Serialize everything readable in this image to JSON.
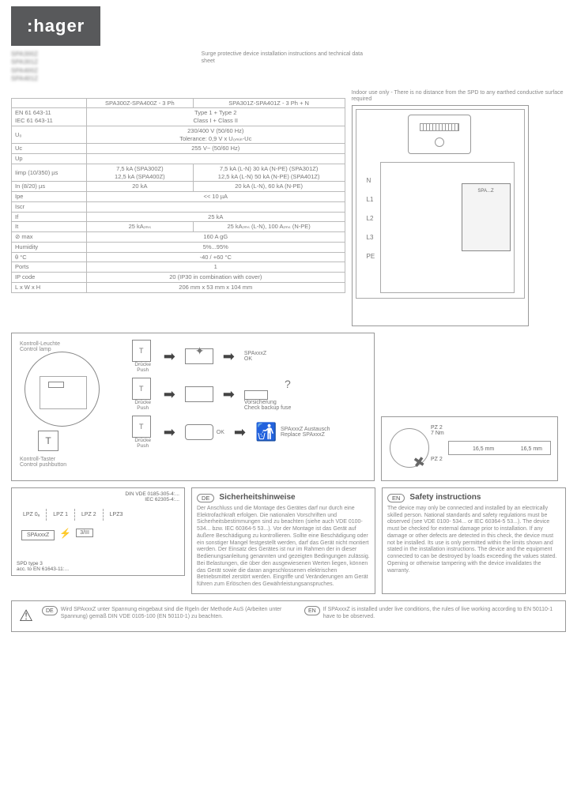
{
  "brand": ":hager",
  "header": {
    "refs": [
      "SPA300Z",
      "SPA301Z",
      "SPA400Z",
      "SPA401Z"
    ],
    "desc_blur": "Surge protective device installation instructions and technical data sheet"
  },
  "spec_table": {
    "col1": "SPA300Z-SPA400Z - 3 Ph",
    "col2": "SPA301Z-SPA401Z - 3 Ph + N",
    "rows": [
      {
        "label": "EN 61 643-11\nIEC 61 643-11",
        "v": "Type 1 + Type 2\nClass I + Class II",
        "span": true
      },
      {
        "label": "U₀",
        "v": "230/400 V (50/60 Hz)\nTolerance: 0,9 V x U₀ₘᵢₙ-Uc",
        "span": true
      },
      {
        "label": "Uc",
        "v": "255 V~ (50/60 Hz)",
        "span": true
      },
      {
        "label": "Up",
        "v": "",
        "span": true
      },
      {
        "label": "Iimp (10/350) µs",
        "v1": "7,5 kA (SPA300Z)\n12,5 kA (SPA400Z)",
        "v2": "7,5 kA (L-N) 30 kA (N-PE) (SPA301Z)\n12,5 kA (L-N) 50 kA (N-PE) (SPA401Z)"
      },
      {
        "label": "In (8/20) µs",
        "v1": "20 kA",
        "v2": "20 kA (L-N), 60 kA (N-PE)"
      },
      {
        "label": "Ipe",
        "v": "<< 10 µA",
        "span": true
      },
      {
        "label": "Iscr",
        "v": "",
        "span": true
      },
      {
        "label": "If",
        "v": "25 kA",
        "span": true
      },
      {
        "label": "It",
        "v1": "25 kAᵣₘₛ",
        "v2": "25 kAᵣₘₛ (L-N), 100 Aᵣₘₛ (N-PE)"
      },
      {
        "label": "⊘ max",
        "v": "160 A gG",
        "span": true
      },
      {
        "label": "Humidity",
        "v": "5%...95%",
        "span": true
      },
      {
        "label": "θ °C",
        "v": "-40 / +60 °C",
        "span": true
      },
      {
        "label": "Ports",
        "v": "1",
        "span": true
      },
      {
        "label": "IP code",
        "v": "20 (IP30 in combination with cover)",
        "span": true
      },
      {
        "label": "L x W x H",
        "v": "206 mm x 53 mm x 104 mm",
        "span": true
      }
    ]
  },
  "schematic": {
    "note": "Indoor use only - There is no distance from the SPD to any earthed conductive surface required",
    "terminals": [
      "N",
      "L1",
      "L2",
      "L3",
      "PE"
    ],
    "module_label": "SPA...Z"
  },
  "control": {
    "left_caption1": "Kontroll-Leuchte\nControl lamp",
    "left_caption2": "Kontroll-Taster\nControl pushbutton",
    "push_label": "Drücke\nPush",
    "row1_result": "SPAxxxZ\nOK",
    "row2_result": "Vorsicherung\nCheck backup fuse",
    "row3_status": "OK",
    "row3_result": "SPAxxxZ Austausch\nReplace SPAxxxZ"
  },
  "tools": {
    "driver": "PZ 2\n7 Nm",
    "driver2": "PZ 2",
    "wire_dim1": "16,5 mm",
    "wire_dim2": "16,5 mm"
  },
  "lpz": {
    "note1": "DIN VDE 0185-305-4:...\nIEC 62305-4:...",
    "zones": [
      "LPZ 0ₐ",
      "LPZ 1",
      "LPZ 2",
      "LPZ3"
    ],
    "box": "SPAxxxZ",
    "box2": "3/III",
    "note2": "SPD type 3\nacc. to EN 61643-11:..."
  },
  "safety": {
    "de_title": "Sicherheitshinweise",
    "de_text": "Der Anschluss und die Montage des Gerätes darf nur durch eine Elektrofachkraft erfolgen. Die nationalen Vorschriften und Sicherheitsbestimmungen sind zu beachten (siehe auch VDE 0100-534... bzw. IEC 60364-5 53...). Vor der Montage ist das Gerät auf äußere Beschädigung zu kontrollieren. Sollte eine Beschädigung oder ein sonstiger Mangel festgestellt werden, darf das Gerät nicht montiert werden. Der Einsatz des Gerätes ist nur im Rahmen der in dieser Bedienungsanleitung genannten und gezeigten Bedingungen zulässig. Bei Belastungen, die über den ausgewiesenen Werten liegen, können das Gerät sowie die daran angeschlossenen elektrischen Betriebsmittel zerstört werden. Eingriffe und Veränderungen am Gerät führen zum Erlöschen des Gewährleistungsanspruches.",
    "en_title": "Safety instructions",
    "en_text": "The device may only be connected and installed by an electrically skilled person. National standards and safety regulations must be observed (see VDE 0100- 534... or IEC 60364-5 53...). The device must be checked for external damage prior to installation. If any damage or other defects are detected in this check, the device must not be installed. Its use is only permitted within the limits shown and stated in the installation instructions. The device and the equipment connected to can be destroyed by loads exceeding the values stated. Opening or otherwise tampering with the device invalidates the warranty."
  },
  "warning": {
    "de": "Wird SPAxxxZ unter Spannung eingebaut sind die Rgeln der Methode AuS (Arbeiten unter Spannung) gemäß DIN VDE 0105-100 (EN 50110-1) zu beachten.",
    "en": "If SPAxxxZ is installed under live conditions, the rules of live working according to EN 50110-1 have to be observed."
  }
}
